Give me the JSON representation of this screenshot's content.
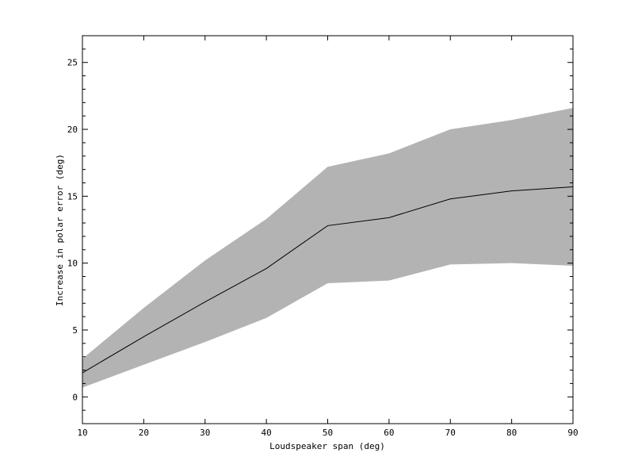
{
  "chart_data": {
    "type": "line",
    "title": "",
    "xlabel": "Loudspeaker span (deg)",
    "ylabel": "Increase in polar error (deg)",
    "xlim": [
      10,
      90
    ],
    "ylim": [
      -2,
      27
    ],
    "xticks": [
      10,
      20,
      30,
      40,
      50,
      60,
      70,
      80,
      90
    ],
    "yticks": [
      0,
      5,
      10,
      15,
      20,
      25
    ],
    "grid": false,
    "x": [
      10,
      20,
      30,
      40,
      50,
      60,
      70,
      80,
      90
    ],
    "series": [
      {
        "values": [
          1.8,
          4.5,
          7.1,
          9.6,
          12.8,
          13.4,
          14.8,
          15.4,
          15.7
        ],
        "color": "#000000"
      }
    ],
    "band": {
      "upper": [
        2.85,
        6.65,
        10.2,
        13.3,
        17.2,
        18.2,
        20.0,
        20.7,
        21.6
      ],
      "lower": [
        0.7,
        2.4,
        4.1,
        5.9,
        8.5,
        8.7,
        9.9,
        10.0,
        9.8
      ],
      "color": "#b3b3b3"
    }
  }
}
